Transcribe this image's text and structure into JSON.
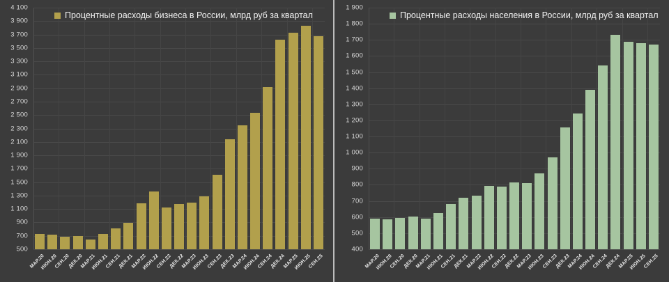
{
  "colors": {
    "background": "#3b3b3b",
    "panel_divider": "#bcbcbc",
    "horizontal_gridline": "#4a4a4a",
    "vertical_gridline": "#454545",
    "y_axis_line": "#515151",
    "y_tick_text": "#d8d8d8",
    "x_tick_text": "#e6e6e6",
    "legend_text": "#f2f2f2",
    "business_bar": "#b2a04c",
    "population_bar": "#a6c5a0"
  },
  "chart_data": [
    {
      "type": "bar",
      "title": "",
      "legend": "Процентные расходы бизнеса в России, млрд руб за квартал",
      "legend_position": "top-left",
      "grid": true,
      "bar_color": "#b2a04c",
      "ylim": [
        500,
        4100
      ],
      "ystep": 200,
      "y_tick_labels": [
        "4 100",
        "3 900",
        "3 700",
        "3 500",
        "3 300",
        "3 100",
        "2 900",
        "2 700",
        "2 500",
        "2 300",
        "2 100",
        "1 900",
        "1 700",
        "1 500",
        "1 300",
        "1 100",
        "900",
        "700",
        "500"
      ],
      "categories": [
        "МАР.20",
        "ИЮН.20",
        "СЕН.20",
        "ДЕК.20",
        "МАР.21",
        "ИЮН.21",
        "СЕН.21",
        "ДЕК.21",
        "МАР.22",
        "ИЮН.22",
        "СЕН.22",
        "ДЕК.22",
        "МАР.23",
        "ИЮН.23",
        "СЕН.23",
        "ДЕК.23",
        "МАР.24",
        "ИЮН.24",
        "СЕН.24",
        "ДЕК.24",
        "МАР.25",
        "ИЮН.25",
        "СЕН.25"
      ],
      "values": [
        725,
        720,
        690,
        700,
        645,
        730,
        815,
        890,
        1190,
        1360,
        1125,
        1175,
        1200,
        1290,
        1610,
        2140,
        2350,
        2530,
        2920,
        3620,
        3730,
        3830,
        3670
      ]
    },
    {
      "type": "bar",
      "title": "",
      "legend": "Процентные расходы населения в России, млрд руб за квартал",
      "legend_position": "top-left",
      "grid": true,
      "bar_color": "#a6c5a0",
      "ylim": [
        400,
        1900
      ],
      "ystep": 100,
      "y_tick_labels": [
        "1 900",
        "1 800",
        "1 700",
        "1 600",
        "1 500",
        "1 400",
        "1 300",
        "1 200",
        "1 100",
        "1 000",
        "900",
        "800",
        "700",
        "600",
        "500",
        "400"
      ],
      "categories": [
        "МАР.20",
        "ИЮН.20",
        "СЕН.20",
        "ДЕК.20",
        "МАР.21",
        "ИЮН.21",
        "СЕН.21",
        "ДЕК.21",
        "МАР.22",
        "ИЮН.22",
        "СЕН.22",
        "ДЕК.22",
        "МАР.23",
        "ИЮН.23",
        "СЕН.23",
        "ДЕК.23",
        "МАР.24",
        "ИЮН.24",
        "СЕН.24",
        "ДЕК.24",
        "МАР.25",
        "ИЮН.25",
        "СЕН.25"
      ],
      "values": [
        590,
        585,
        595,
        605,
        590,
        625,
        680,
        720,
        735,
        795,
        790,
        815,
        810,
        870,
        970,
        1155,
        1245,
        1390,
        1540,
        1730,
        1690,
        1680,
        1670
      ]
    }
  ]
}
